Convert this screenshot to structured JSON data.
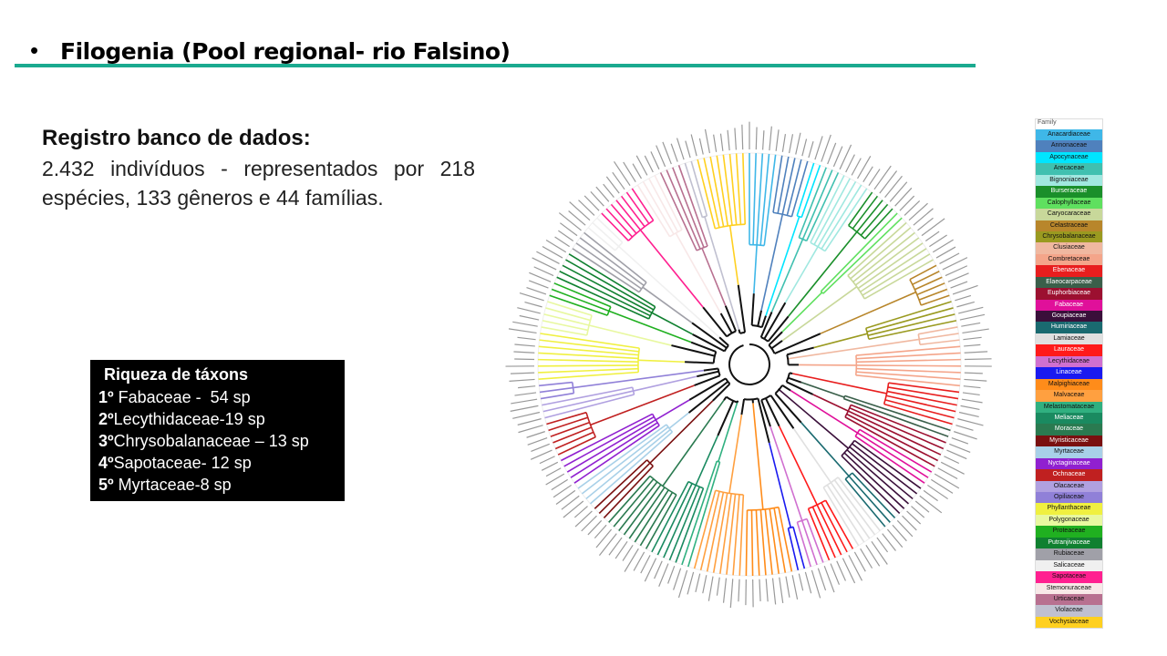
{
  "header": {
    "bullet": "•",
    "title": "Filogenia (Pool regional- rio Falsino)"
  },
  "database": {
    "heading": "Registro banco de dados:",
    "text": "2.432 indivíduos - representados por 218 espécies, 133 gêneros e 44 famílias."
  },
  "ranking": {
    "title": "Riqueza de táxons",
    "items": [
      {
        "rank": "1º",
        "text": " Fabaceae -  54 sp"
      },
      {
        "rank": "2º",
        "text": "Lecythidaceae-19 sp"
      },
      {
        "rank": "3º",
        "text": "Chrysobalanaceae – 13 sp"
      },
      {
        "rank": "4º",
        "text": "Sapotaceae- 12 sp"
      },
      {
        "rank": "5º",
        "text": " Myrtaceae-8 sp"
      }
    ]
  },
  "legend": {
    "title": "Family",
    "items": [
      {
        "name": "Anacardiaceae",
        "color": "#3fb7e8"
      },
      {
        "name": "Annonaceae",
        "color": "#4f81bd"
      },
      {
        "name": "Apocynaceae",
        "color": "#00e5ff"
      },
      {
        "name": "Arecaceae",
        "color": "#40c0b0"
      },
      {
        "name": "Bignoniaceae",
        "color": "#a0e8e0"
      },
      {
        "name": "Burseraceae",
        "color": "#1a8f2a"
      },
      {
        "name": "Calophyllaceae",
        "color": "#5fe05f"
      },
      {
        "name": "Caryocaraceae",
        "color": "#c8d89a"
      },
      {
        "name": "Celastraceae",
        "color": "#b8862b"
      },
      {
        "name": "Chrysobalanaceae",
        "color": "#9a9a20"
      },
      {
        "name": "Clusiaceae",
        "color": "#f0b8a0"
      },
      {
        "name": "Combretaceae",
        "color": "#f4a58a"
      },
      {
        "name": "Ebenaceae",
        "color": "#e81e1e"
      },
      {
        "name": "Elaeocarpaceae",
        "color": "#3a5f4a"
      },
      {
        "name": "Euphorbiaceae",
        "color": "#9c1030"
      },
      {
        "name": "Fabaceae",
        "color": "#e0109a"
      },
      {
        "name": "Goupiaceae",
        "color": "#3a0f3a"
      },
      {
        "name": "Humiriaceae",
        "color": "#1a6a70"
      },
      {
        "name": "Lamiaceae",
        "color": "#e0e0e0"
      },
      {
        "name": "Lauraceae",
        "color": "#ff1a1a"
      },
      {
        "name": "Lecythidaceae",
        "color": "#d070d0"
      },
      {
        "name": "Linaceae",
        "color": "#1a1af0"
      },
      {
        "name": "Malpighiaceae",
        "color": "#ff8c1a"
      },
      {
        "name": "Malvaceae",
        "color": "#ffa040"
      },
      {
        "name": "Melastomataceae",
        "color": "#30b080"
      },
      {
        "name": "Meliaceae",
        "color": "#1a8a60"
      },
      {
        "name": "Moraceae",
        "color": "#2a7a50"
      },
      {
        "name": "Myristicaceae",
        "color": "#7a1010"
      },
      {
        "name": "Myrtaceae",
        "color": "#a8d0e8"
      },
      {
        "name": "Nyctaginaceae",
        "color": "#9020d0"
      },
      {
        "name": "Ochnaceae",
        "color": "#c02020"
      },
      {
        "name": "Olacaceae",
        "color": "#b0a0e0"
      },
      {
        "name": "Opiliaceae",
        "color": "#9080d8"
      },
      {
        "name": "Phyllanthaceae",
        "color": "#f0f040"
      },
      {
        "name": "Polygonaceae",
        "color": "#e8f8a0"
      },
      {
        "name": "Proteaceae",
        "color": "#20b020"
      },
      {
        "name": "Putranjivaceae",
        "color": "#108030"
      },
      {
        "name": "Rubiaceae",
        "color": "#a0a0a8"
      },
      {
        "name": "Salicaceae",
        "color": "#f0f0f0"
      },
      {
        "name": "Sapotaceae",
        "color": "#ff2090"
      },
      {
        "name": "Stemonuraceae",
        "color": "#f8e8e8"
      },
      {
        "name": "Urticaceae",
        "color": "#b87090"
      },
      {
        "name": "Violaceae",
        "color": "#c0c0d0"
      },
      {
        "name": "Vochysiaceae",
        "color": "#ffd020"
      }
    ]
  }
}
